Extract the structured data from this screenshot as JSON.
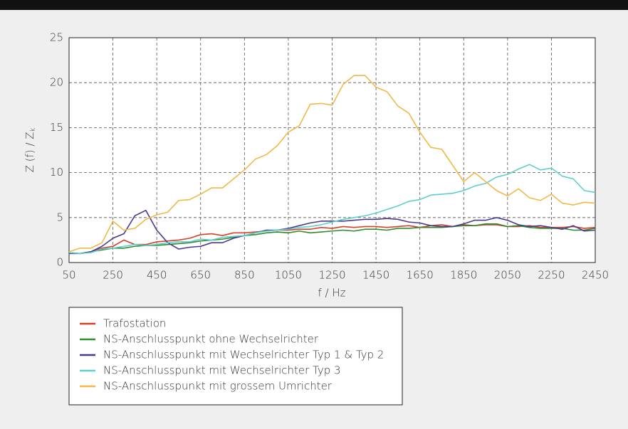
{
  "chart_data": {
    "type": "line",
    "xlabel": "f / Hz",
    "ylabel": "Z (f) / Z",
    "ylabel_sub": "k",
    "x": [
      50,
      100,
      150,
      200,
      250,
      300,
      350,
      400,
      450,
      500,
      550,
      600,
      650,
      700,
      750,
      800,
      850,
      900,
      950,
      1000,
      1050,
      1100,
      1150,
      1200,
      1250,
      1300,
      1350,
      1400,
      1450,
      1500,
      1550,
      1600,
      1650,
      1700,
      1750,
      1800,
      1850,
      1900,
      1950,
      2000,
      2050,
      2100,
      2150,
      2200,
      2250,
      2300,
      2350,
      2400,
      2450
    ],
    "xlim": [
      50,
      2450
    ],
    "xticks": [
      50,
      250,
      450,
      650,
      850,
      1050,
      1250,
      1450,
      1650,
      1850,
      2050,
      2250,
      2450
    ],
    "ylim": [
      0,
      25
    ],
    "yticks": [
      0,
      5,
      10,
      15,
      20,
      25
    ],
    "grid": true,
    "series": [
      {
        "name": "Trafostation",
        "color": "#d6402a",
        "values": [
          1.1,
          1.0,
          1.2,
          1.6,
          1.8,
          2.5,
          2.0,
          2.0,
          2.3,
          2.4,
          2.5,
          2.7,
          3.1,
          3.2,
          3.0,
          3.3,
          3.3,
          3.4,
          3.5,
          3.6,
          3.6,
          3.7,
          3.7,
          3.9,
          3.8,
          4.0,
          3.9,
          4.0,
          4.0,
          3.9,
          4.0,
          4.1,
          3.9,
          4.1,
          4.2,
          4.0,
          4.2,
          4.1,
          4.2,
          4.2,
          4.0,
          4.0,
          4.1,
          3.9,
          3.9,
          3.9,
          4.0,
          3.8,
          3.9
        ]
      },
      {
        "name": "NS-Anschlusspunkt ohne Wechselrichter",
        "color": "#2e8b2e",
        "values": [
          1.1,
          1.0,
          1.2,
          1.4,
          1.6,
          1.6,
          1.8,
          1.9,
          1.9,
          2.0,
          2.1,
          2.2,
          2.4,
          2.5,
          2.6,
          2.8,
          3.0,
          3.1,
          3.3,
          3.4,
          3.3,
          3.5,
          3.3,
          3.4,
          3.5,
          3.6,
          3.5,
          3.7,
          3.7,
          3.6,
          3.8,
          3.8,
          3.9,
          3.9,
          3.9,
          4.0,
          4.1,
          4.1,
          4.3,
          4.3,
          4.0,
          4.1,
          3.9,
          3.8,
          3.8,
          3.8,
          3.6,
          3.6,
          3.8
        ]
      },
      {
        "name": "NS-Anschlusspunkt mit Wechselrichter Typ 1 & Typ 2",
        "color": "#4b3a8c",
        "values": [
          1.0,
          1.0,
          1.2,
          1.8,
          2.7,
          3.2,
          5.2,
          5.8,
          3.6,
          2.2,
          1.5,
          1.7,
          1.8,
          2.2,
          2.2,
          2.7,
          3.0,
          3.3,
          3.6,
          3.6,
          3.8,
          4.1,
          4.4,
          4.6,
          4.6,
          4.6,
          4.7,
          4.8,
          4.8,
          4.9,
          4.8,
          4.5,
          4.4,
          4.1,
          4.0,
          4.0,
          4.3,
          4.7,
          4.7,
          5.0,
          4.7,
          4.2,
          4.0,
          4.1,
          3.9,
          3.7,
          4.1,
          3.5,
          3.6
        ]
      },
      {
        "name": "NS-Anschlusspunkt mit Wechselrichter Typ 3",
        "color": "#5ccfcf",
        "values": [
          1.1,
          1.0,
          1.1,
          1.5,
          1.6,
          1.8,
          2.0,
          1.9,
          2.0,
          2.2,
          2.3,
          2.3,
          2.6,
          2.5,
          2.8,
          2.9,
          3.0,
          3.3,
          3.5,
          3.6,
          3.7,
          3.9,
          4.0,
          4.2,
          4.5,
          4.8,
          5.0,
          5.2,
          5.5,
          5.9,
          6.3,
          6.8,
          7.0,
          7.5,
          7.6,
          7.7,
          8.0,
          8.5,
          8.8,
          9.5,
          9.8,
          10.4,
          10.9,
          10.3,
          10.5,
          9.6,
          9.3,
          8.0,
          7.8
        ]
      },
      {
        "name": "NS-Anschlusspunkt mit grossem Umrichter",
        "color": "#f2b848",
        "values": [
          1.2,
          1.6,
          1.6,
          2.2,
          4.6,
          3.6,
          3.8,
          4.8,
          5.3,
          5.6,
          6.9,
          7.0,
          7.6,
          8.3,
          8.3,
          9.3,
          10.3,
          11.5,
          12.0,
          13.0,
          14.5,
          15.2,
          17.6,
          17.7,
          17.5,
          19.8,
          20.8,
          20.8,
          19.5,
          19.0,
          17.4,
          16.6,
          14.5,
          12.8,
          12.6,
          10.8,
          9.0,
          10.0,
          9.0,
          8.0,
          7.4,
          8.2,
          7.2,
          6.9,
          7.6,
          6.6,
          6.4,
          6.7,
          6.6
        ]
      }
    ]
  }
}
